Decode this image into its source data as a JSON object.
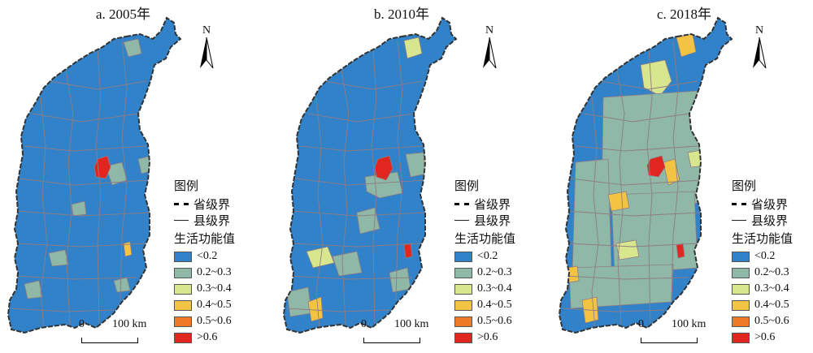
{
  "colors": {
    "c1": "#3182c8",
    "c2": "#8fb8a6",
    "c3": "#d8e68e",
    "c4": "#f3c443",
    "c5": "#ef7a25",
    "c6": "#e0261f",
    "boundary": "#8e7d86"
  },
  "panels": [
    {
      "title": "a. 2005年",
      "north": "N",
      "legend_title": "图例",
      "legend_province": "省级界",
      "legend_county": "县级界",
      "legend_value_title": "生活功能值",
      "scale_zero": "0",
      "scale_dist": "100 km",
      "highlights": {
        "red": [
          "center"
        ],
        "yellow": [],
        "lightgreen": [],
        "greyish": [
          "southwest",
          "east"
        ]
      }
    },
    {
      "title": "b. 2010年",
      "north": "N",
      "legend_title": "图例",
      "legend_province": "省级界",
      "legend_county": "县级界",
      "legend_value_title": "生活功能值",
      "scale_zero": "0",
      "scale_dist": "100 km",
      "highlights": {
        "red": [
          "center",
          "southeast"
        ],
        "yellow": [
          "south"
        ],
        "lightgreen": [
          "north",
          "southmid"
        ],
        "greyish": [
          "middle",
          "southwest"
        ]
      }
    },
    {
      "title": "c. 2018年",
      "north": "N",
      "legend_title": "图例",
      "legend_province": "省级界",
      "legend_county": "县级界",
      "legend_value_title": "生活功能值",
      "scale_zero": "0",
      "scale_dist": "100 km",
      "highlights": {
        "red": [
          "center",
          "southeast"
        ],
        "yellow": [
          "north",
          "center2",
          "south"
        ],
        "lightgreen": [
          "northwest",
          "southmid"
        ],
        "greyish": [
          "large"
        ]
      }
    }
  ],
  "legend_classes": [
    {
      "label": "<0.2",
      "color": "#3182c8"
    },
    {
      "label": "0.2~0.3",
      "color": "#8fb8a6"
    },
    {
      "label": "0.3~0.4",
      "color": "#d8e68e"
    },
    {
      "label": "0.4~0.5",
      "color": "#f3c443"
    },
    {
      "label": "0.5~0.6",
      "color": "#ef7a25"
    },
    {
      "label": ">0.6",
      "color": "#e0261f"
    }
  ]
}
